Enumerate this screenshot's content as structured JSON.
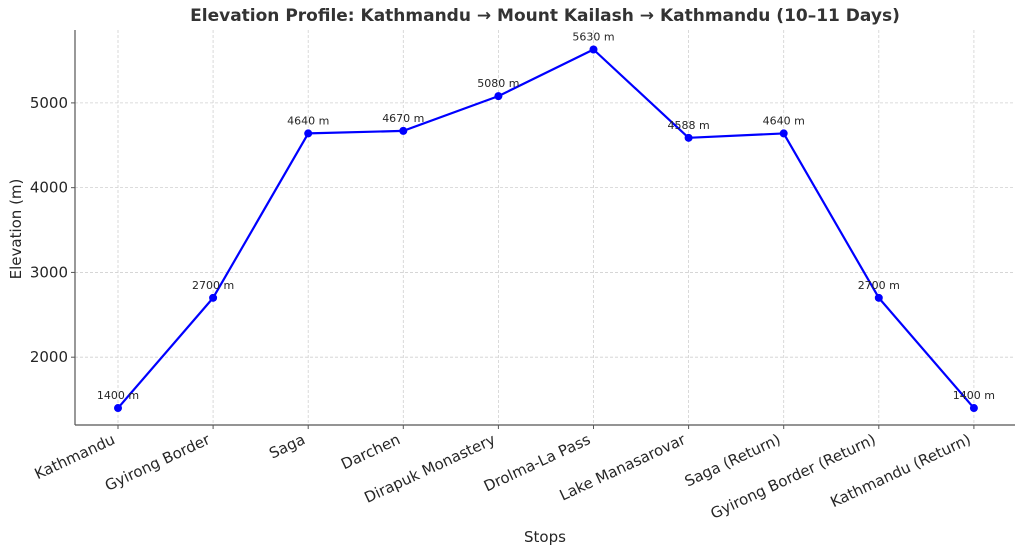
{
  "chart_data": {
    "type": "line",
    "title": "Elevation Profile: Kathmandu → Mount Kailash → Kathmandu (10–11 Days)",
    "xlabel": "Stops",
    "ylabel": "Elevation (m)",
    "categories": [
      "Kathmandu",
      "Gyirong Border",
      "Saga",
      "Darchen",
      "Dirapuk Monastery",
      "Drolma-La Pass",
      "Lake Manasarovar",
      "Saga (Return)",
      "Gyirong Border (Return)",
      "Kathmandu (Return)"
    ],
    "series": [
      {
        "name": "Elevation",
        "values": [
          1400,
          2700,
          4640,
          4670,
          5080,
          5630,
          4588,
          4640,
          2700,
          1400
        ],
        "color": "#0000ff",
        "marker": "circle"
      }
    ],
    "data_labels": [
      "1400 m",
      "2700 m",
      "4640 m",
      "4670 m",
      "5080 m",
      "5630 m",
      "4588 m",
      "4640 m",
      "2700 m",
      "1400 m"
    ],
    "yticks": [
      2000,
      3000,
      4000,
      5000
    ],
    "ylim": [
      1200,
      5860
    ],
    "grid": true,
    "grid_style": "dashed",
    "legend": "none",
    "xtick_rotation": -25
  }
}
